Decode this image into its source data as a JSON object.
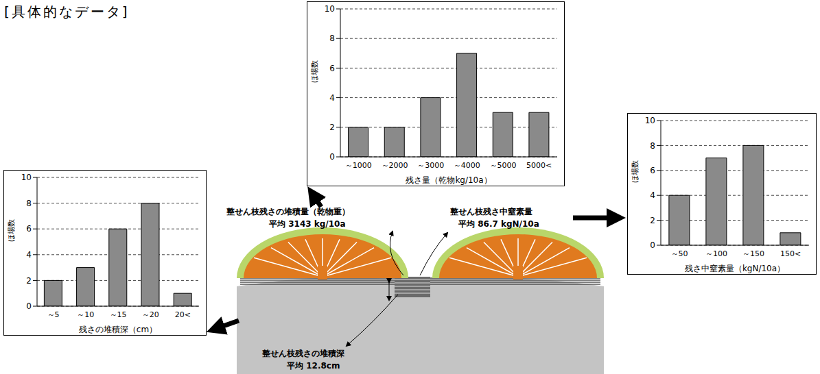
{
  "header": {
    "title": "[具体的なデータ]"
  },
  "chart_data": [
    {
      "type": "bar",
      "categories": [
        "～1000",
        "～2000",
        "～3000",
        "～4000",
        "～5000",
        "5000<"
      ],
      "values": [
        2,
        2,
        4,
        7,
        3,
        3
      ],
      "color": "#8a8a8a",
      "ylim": [
        0,
        10
      ],
      "yticks": [
        0,
        2,
        4,
        6,
        8,
        10
      ],
      "grid": true,
      "xlabel": "残さ量（乾物kg/10a）",
      "ylabel": "ほ場数"
    },
    {
      "type": "bar",
      "categories": [
        "～50",
        "～100",
        "～150",
        "150<"
      ],
      "values": [
        4,
        7,
        8,
        1
      ],
      "color": "#8a8a8a",
      "ylim": [
        0,
        10
      ],
      "yticks": [
        0,
        2,
        4,
        6,
        8,
        10
      ],
      "grid": true,
      "xlabel": "残さ中窒素量（kgN/10a）",
      "ylabel": "ほ場数"
    },
    {
      "type": "bar",
      "categories": [
        "～5",
        "～10",
        "～15",
        "～20",
        "20<"
      ],
      "values": [
        2,
        3,
        6,
        8,
        1
      ],
      "color": "#8a8a8a",
      "ylim": [
        0,
        10
      ],
      "yticks": [
        0,
        2,
        4,
        6,
        8,
        10
      ],
      "grid": true,
      "xlabel": "残さの堆積深（cm）",
      "ylabel": "ほ場数"
    }
  ],
  "annotations": [
    {
      "label": "整せん枝残さの堆積量（乾物重）",
      "text": "平均 3143 kg/10a"
    },
    {
      "label": "整せん枝残さ中窒素量",
      "text": "平均 86.7 kgN/10a"
    },
    {
      "label": "整せん枝残さの堆積深",
      "text": "平均 12.8cm"
    }
  ]
}
